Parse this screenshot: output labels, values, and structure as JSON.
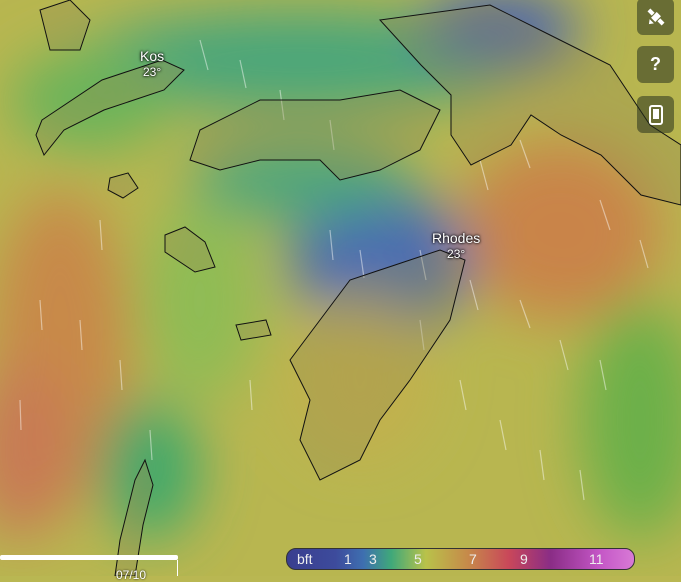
{
  "map": {
    "places": [
      {
        "name": "Kos",
        "temp": "23°"
      },
      {
        "name": "Rhodes",
        "temp": "23°"
      }
    ]
  },
  "controls": [
    {
      "icon": "satellite-icon",
      "label": "Satellite"
    },
    {
      "icon": "help-icon",
      "glyph": "?"
    },
    {
      "icon": "mobile-icon"
    }
  ],
  "legend": {
    "unit": "bft",
    "values": [
      "1",
      "3",
      "5",
      "7",
      "9",
      "11"
    ],
    "colors": [
      "#3d4b9c",
      "#3e6fb0",
      "#3fa87a",
      "#c68a4a",
      "#c9475a",
      "#c456c6"
    ]
  },
  "timeline": {
    "date": "07/10"
  }
}
